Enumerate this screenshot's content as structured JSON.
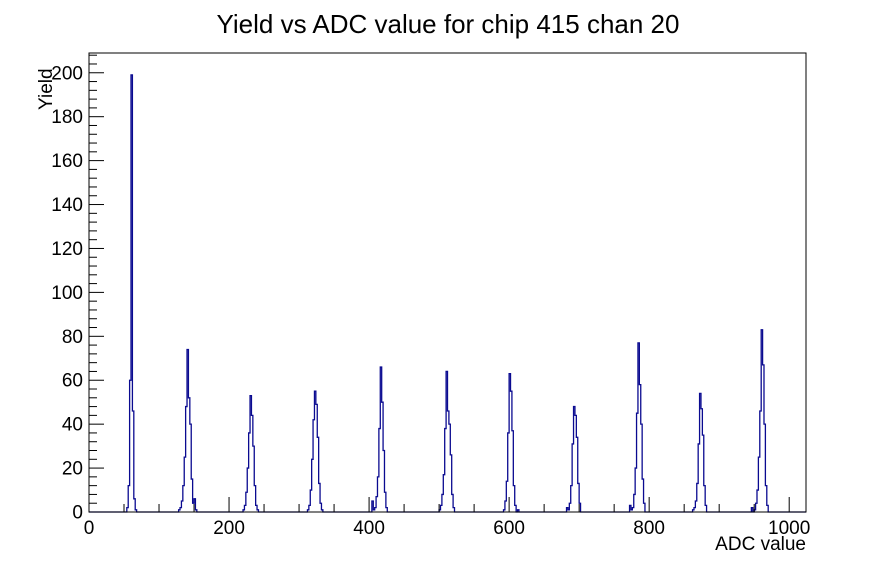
{
  "page": {
    "background": "#ffffff"
  },
  "chart_data": {
    "type": "histogram",
    "title": "Yield vs ADC value for chip 415 chan 20",
    "xlabel": "ADC value",
    "ylabel": "Yield",
    "xlim": [
      0,
      1024
    ],
    "ylim": [
      0,
      209
    ],
    "grid": false,
    "legend": false,
    "line_color": "#0a0a90",
    "frame_color": "#000000",
    "bin_width": 2,
    "x_ticks": {
      "major_step": 200,
      "minor_step": 50,
      "labels": [
        "0",
        "200",
        "400",
        "600",
        "800",
        "1000"
      ]
    },
    "y_ticks": {
      "major_step": 20,
      "minor_step": 4,
      "labels": [
        "0",
        "20",
        "40",
        "60",
        "80",
        "100",
        "120",
        "140",
        "160",
        "180",
        "200"
      ]
    },
    "peaks": [
      {
        "center": 60,
        "height": 199
      },
      {
        "center": 140,
        "height": 74
      },
      {
        "center": 230,
        "height": 53
      },
      {
        "center": 322,
        "height": 55
      },
      {
        "center": 416,
        "height": 66
      },
      {
        "center": 510,
        "height": 64
      },
      {
        "center": 600,
        "height": 63
      },
      {
        "center": 692,
        "height": 48
      },
      {
        "center": 784,
        "height": 77
      },
      {
        "center": 872,
        "height": 54
      },
      {
        "center": 960,
        "height": 83
      }
    ],
    "bins": [
      [
        54,
        2
      ],
      [
        56,
        12
      ],
      [
        58,
        60
      ],
      [
        60,
        199
      ],
      [
        62,
        46
      ],
      [
        64,
        6
      ],
      [
        66,
        1
      ],
      [
        128,
        1
      ],
      [
        130,
        2
      ],
      [
        132,
        5
      ],
      [
        134,
        12
      ],
      [
        136,
        25
      ],
      [
        138,
        48
      ],
      [
        140,
        74
      ],
      [
        142,
        52
      ],
      [
        144,
        40
      ],
      [
        146,
        15
      ],
      [
        148,
        4
      ],
      [
        150,
        6
      ],
      [
        152,
        1
      ],
      [
        220,
        1
      ],
      [
        222,
        3
      ],
      [
        224,
        9
      ],
      [
        226,
        20
      ],
      [
        228,
        36
      ],
      [
        230,
        53
      ],
      [
        232,
        44
      ],
      [
        234,
        30
      ],
      [
        236,
        12
      ],
      [
        238,
        3
      ],
      [
        240,
        1
      ],
      [
        312,
        1
      ],
      [
        314,
        3
      ],
      [
        316,
        10
      ],
      [
        318,
        24
      ],
      [
        320,
        42
      ],
      [
        322,
        55
      ],
      [
        324,
        49
      ],
      [
        326,
        34
      ],
      [
        328,
        13
      ],
      [
        330,
        4
      ],
      [
        332,
        1
      ],
      [
        404,
        5
      ],
      [
        406,
        1
      ],
      [
        408,
        2
      ],
      [
        410,
        7
      ],
      [
        412,
        16
      ],
      [
        414,
        38
      ],
      [
        416,
        66
      ],
      [
        418,
        50
      ],
      [
        420,
        28
      ],
      [
        422,
        9
      ],
      [
        424,
        2
      ],
      [
        500,
        1
      ],
      [
        502,
        3
      ],
      [
        504,
        8
      ],
      [
        506,
        17
      ],
      [
        508,
        38
      ],
      [
        510,
        64
      ],
      [
        512,
        46
      ],
      [
        514,
        40
      ],
      [
        516,
        26
      ],
      [
        518,
        8
      ],
      [
        520,
        2
      ],
      [
        592,
        1
      ],
      [
        594,
        5
      ],
      [
        596,
        14
      ],
      [
        598,
        36
      ],
      [
        600,
        63
      ],
      [
        602,
        55
      ],
      [
        604,
        37
      ],
      [
        606,
        12
      ],
      [
        608,
        3
      ],
      [
        612,
        1
      ],
      [
        682,
        2
      ],
      [
        684,
        1
      ],
      [
        686,
        4
      ],
      [
        688,
        12
      ],
      [
        690,
        31
      ],
      [
        692,
        48
      ],
      [
        694,
        44
      ],
      [
        696,
        34
      ],
      [
        698,
        13
      ],
      [
        700,
        4
      ],
      [
        772,
        3
      ],
      [
        774,
        1
      ],
      [
        776,
        2
      ],
      [
        778,
        8
      ],
      [
        780,
        20
      ],
      [
        782,
        45
      ],
      [
        784,
        77
      ],
      [
        786,
        58
      ],
      [
        788,
        40
      ],
      [
        790,
        15
      ],
      [
        792,
        4
      ],
      [
        862,
        1
      ],
      [
        864,
        2
      ],
      [
        866,
        5
      ],
      [
        868,
        13
      ],
      [
        870,
        31
      ],
      [
        872,
        54
      ],
      [
        874,
        47
      ],
      [
        876,
        35
      ],
      [
        878,
        12
      ],
      [
        880,
        3
      ],
      [
        946,
        2
      ],
      [
        950,
        1
      ],
      [
        952,
        4
      ],
      [
        954,
        10
      ],
      [
        956,
        25
      ],
      [
        958,
        46
      ],
      [
        960,
        83
      ],
      [
        962,
        67
      ],
      [
        964,
        40
      ],
      [
        966,
        12
      ],
      [
        968,
        3
      ]
    ]
  }
}
